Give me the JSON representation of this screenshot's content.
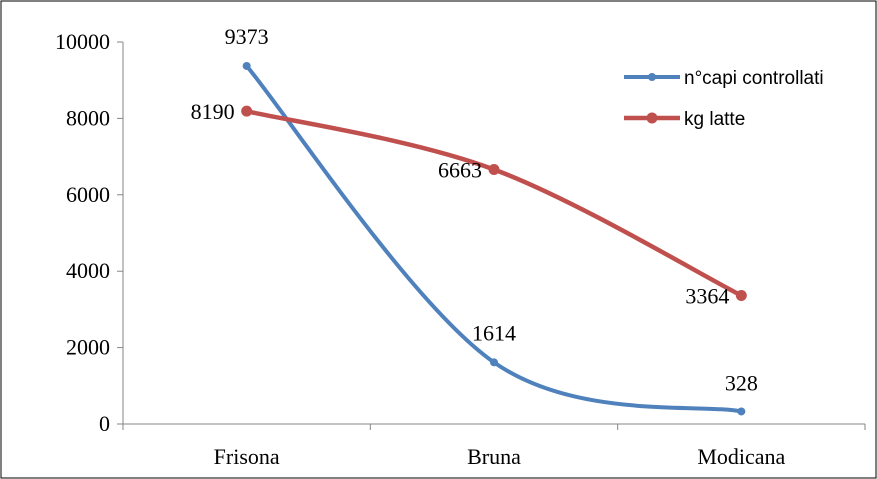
{
  "chart_data": {
    "type": "line",
    "smooth": true,
    "categories": [
      "Frisona",
      "Bruna",
      "Modicana"
    ],
    "ylim": [
      0,
      10000
    ],
    "yticks": [
      0,
      2000,
      4000,
      6000,
      8000,
      10000
    ],
    "grid": false,
    "legend_position": "top-right",
    "series": [
      {
        "name": "n°capi controllati",
        "values": [
          9373,
          1614,
          328
        ],
        "color": "#4F81BD"
      },
      {
        "name": "kg latte",
        "values": [
          8190,
          6663,
          3364
        ],
        "color": "#C0504D"
      }
    ]
  }
}
